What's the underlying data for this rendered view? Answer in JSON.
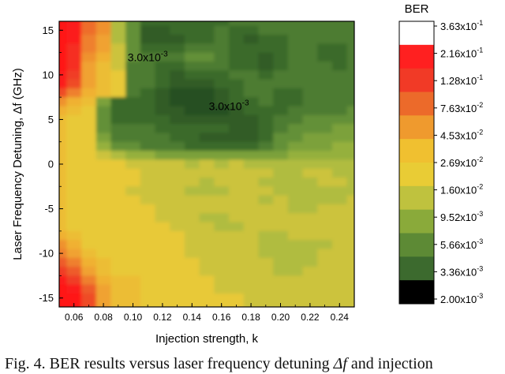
{
  "chart_data": {
    "type": "heatmap",
    "title": "",
    "xlabel": "Injection strength, k",
    "ylabel": "Laser Frequency Detuning, Δf (GHz)",
    "xlim": [
      0.05,
      0.25
    ],
    "ylim": [
      -16,
      16
    ],
    "x_ticks": [
      0.06,
      0.08,
      0.1,
      0.12,
      0.14,
      0.16,
      0.18,
      0.2,
      0.22,
      0.24
    ],
    "x_tick_labels": [
      "0.06",
      "0.08",
      "0.10",
      "0.12",
      "0.14",
      "0.16",
      "0.18",
      "0.20",
      "0.22",
      "0.24"
    ],
    "y_ticks": [
      -15,
      -10,
      -5,
      0,
      5,
      10,
      15
    ],
    "y_tick_labels": [
      "-15",
      "-10",
      "-5",
      "0",
      "5",
      "10",
      "15"
    ],
    "x": [
      0.05,
      0.06,
      0.07,
      0.08,
      0.09,
      0.1,
      0.11,
      0.12,
      0.13,
      0.14,
      0.15,
      0.16,
      0.17,
      0.18,
      0.19,
      0.2,
      0.21,
      0.22,
      0.23,
      0.24,
      0.25
    ],
    "y": [
      16,
      15,
      14,
      13,
      12,
      11,
      10,
      9,
      8,
      7,
      6,
      5,
      4,
      3,
      2,
      1,
      0,
      -1,
      -2,
      -3,
      -4,
      -5,
      -6,
      -7,
      -8,
      -9,
      -10,
      -11,
      -12,
      -13,
      -14,
      -15,
      -16
    ],
    "z_log10_ber": [
      [
        -0.6,
        -0.7,
        -1.2,
        -1.4,
        -2.0,
        -2.3,
        -2.5,
        -2.5,
        -2.5,
        -2.5,
        -2.5,
        -2.5,
        -2.4,
        -2.4,
        -2.4,
        -2.4,
        -2.4,
        -2.4,
        -2.4,
        -2.4,
        -2.4
      ],
      [
        -0.6,
        -0.7,
        -1.2,
        -1.4,
        -2.0,
        -2.3,
        -2.6,
        -2.6,
        -2.5,
        -2.5,
        -2.5,
        -2.4,
        -2.5,
        -2.5,
        -2.4,
        -2.4,
        -2.4,
        -2.4,
        -2.4,
        -2.4,
        -2.4
      ],
      [
        -0.6,
        -0.7,
        -1.3,
        -1.5,
        -2.0,
        -2.3,
        -2.6,
        -2.6,
        -2.6,
        -2.5,
        -2.5,
        -2.4,
        -2.5,
        -2.6,
        -2.5,
        -2.5,
        -2.4,
        -2.4,
        -2.4,
        -2.4,
        -2.4
      ],
      [
        -0.6,
        -0.8,
        -1.3,
        -1.5,
        -1.9,
        -2.3,
        -2.5,
        -2.5,
        -2.5,
        -2.4,
        -2.4,
        -2.4,
        -2.5,
        -2.5,
        -2.5,
        -2.5,
        -2.4,
        -2.4,
        -2.5,
        -2.5,
        -2.4
      ],
      [
        -0.6,
        -0.8,
        -1.4,
        -1.6,
        -1.9,
        -2.3,
        -2.4,
        -2.4,
        -2.4,
        -2.3,
        -2.3,
        -2.4,
        -2.5,
        -2.5,
        -2.6,
        -2.5,
        -2.4,
        -2.4,
        -2.5,
        -2.5,
        -2.4
      ],
      [
        -0.6,
        -0.8,
        -1.5,
        -1.7,
        -1.9,
        -2.4,
        -2.4,
        -2.5,
        -2.5,
        -2.4,
        -2.4,
        -2.4,
        -2.5,
        -2.5,
        -2.6,
        -2.5,
        -2.4,
        -2.4,
        -2.4,
        -2.5,
        -2.4
      ],
      [
        -0.7,
        -0.9,
        -1.5,
        -1.7,
        -1.8,
        -2.4,
        -2.4,
        -2.5,
        -2.6,
        -2.5,
        -2.5,
        -2.5,
        -2.4,
        -2.4,
        -2.5,
        -2.4,
        -2.4,
        -2.4,
        -2.4,
        -2.4,
        -2.4
      ],
      [
        -0.7,
        -1.0,
        -1.5,
        -1.7,
        -1.8,
        -2.4,
        -2.4,
        -2.5,
        -2.6,
        -2.6,
        -2.6,
        -2.5,
        -2.5,
        -2.4,
        -2.4,
        -2.4,
        -2.4,
        -2.4,
        -2.4,
        -2.4,
        -2.4
      ],
      [
        -1.0,
        -1.3,
        -1.6,
        -1.7,
        -1.8,
        -2.4,
        -2.5,
        -2.6,
        -2.7,
        -2.7,
        -2.7,
        -2.6,
        -2.5,
        -2.4,
        -2.4,
        -2.5,
        -2.5,
        -2.4,
        -2.4,
        -2.4,
        -2.4
      ],
      [
        -1.4,
        -1.6,
        -1.7,
        -2.2,
        -2.5,
        -2.5,
        -2.5,
        -2.6,
        -2.7,
        -2.8,
        -2.8,
        -2.6,
        -2.5,
        -2.5,
        -2.4,
        -2.5,
        -2.5,
        -2.4,
        -2.4,
        -2.4,
        -2.4
      ],
      [
        -1.6,
        -1.7,
        -1.8,
        -2.3,
        -2.5,
        -2.5,
        -2.5,
        -2.6,
        -2.6,
        -2.7,
        -2.7,
        -2.7,
        -2.6,
        -2.5,
        -2.5,
        -2.5,
        -2.4,
        -2.4,
        -2.4,
        -2.4,
        -2.3
      ],
      [
        -1.7,
        -1.8,
        -1.8,
        -2.3,
        -2.5,
        -2.5,
        -2.5,
        -2.5,
        -2.6,
        -2.6,
        -2.6,
        -2.6,
        -2.6,
        -2.6,
        -2.5,
        -2.4,
        -2.4,
        -2.3,
        -2.3,
        -2.3,
        -2.3
      ],
      [
        -1.7,
        -1.8,
        -1.8,
        -2.3,
        -2.4,
        -2.4,
        -2.4,
        -2.5,
        -2.5,
        -2.5,
        -2.5,
        -2.5,
        -2.6,
        -2.6,
        -2.5,
        -2.4,
        -2.3,
        -2.3,
        -2.3,
        -2.2,
        -2.2
      ],
      [
        -1.7,
        -1.8,
        -1.8,
        -2.2,
        -2.4,
        -2.4,
        -2.4,
        -2.4,
        -2.5,
        -2.5,
        -2.6,
        -2.6,
        -2.6,
        -2.6,
        -2.5,
        -2.3,
        -2.3,
        -2.2,
        -2.2,
        -2.2,
        -2.2
      ],
      [
        -1.7,
        -1.8,
        -1.8,
        -2.1,
        -2.3,
        -2.3,
        -2.4,
        -2.4,
        -2.4,
        -2.5,
        -2.5,
        -2.5,
        -2.5,
        -2.5,
        -2.4,
        -2.3,
        -2.2,
        -2.2,
        -2.2,
        -2.1,
        -2.1
      ],
      [
        -1.7,
        -1.8,
        -1.8,
        -1.9,
        -2.0,
        -2.1,
        -2.1,
        -2.2,
        -2.2,
        -2.2,
        -2.2,
        -2.2,
        -2.2,
        -2.2,
        -2.2,
        -2.2,
        -2.1,
        -2.1,
        -2.1,
        -2.1,
        -2.1
      ],
      [
        -1.7,
        -1.8,
        -1.8,
        -1.8,
        -1.8,
        -1.9,
        -1.9,
        -1.9,
        -1.9,
        -2.0,
        -1.9,
        -2.0,
        -1.9,
        -2.0,
        -2.0,
        -2.0,
        -2.0,
        -2.0,
        -2.0,
        -2.0,
        -2.0
      ],
      [
        -1.7,
        -1.8,
        -1.8,
        -1.8,
        -1.8,
        -1.8,
        -1.9,
        -1.9,
        -1.9,
        -1.9,
        -1.9,
        -1.9,
        -1.9,
        -1.9,
        -1.9,
        -2.0,
        -2.0,
        -1.9,
        -1.9,
        -2.0,
        -2.0
      ],
      [
        -1.7,
        -1.8,
        -1.8,
        -1.8,
        -1.8,
        -1.8,
        -1.9,
        -1.9,
        -1.9,
        -1.9,
        -2.0,
        -1.9,
        -1.9,
        -1.9,
        -2.0,
        -2.0,
        -2.0,
        -2.0,
        -1.9,
        -1.9,
        -2.0
      ],
      [
        -1.7,
        -1.8,
        -1.8,
        -1.8,
        -1.8,
        -1.9,
        -1.9,
        -1.9,
        -1.9,
        -2.0,
        -2.0,
        -2.0,
        -1.9,
        -1.9,
        -1.9,
        -2.0,
        -2.0,
        -2.0,
        -2.0,
        -2.0,
        -2.0
      ],
      [
        -1.7,
        -1.8,
        -1.8,
        -1.8,
        -1.8,
        -1.8,
        -1.9,
        -1.9,
        -1.9,
        -1.9,
        -1.9,
        -1.9,
        -1.9,
        -1.9,
        -2.0,
        -1.9,
        -2.0,
        -2.0,
        -2.0,
        -2.0,
        -1.9
      ],
      [
        -1.7,
        -1.8,
        -1.8,
        -1.8,
        -1.8,
        -1.8,
        -1.8,
        -1.9,
        -1.9,
        -1.9,
        -1.9,
        -1.9,
        -1.9,
        -1.9,
        -1.9,
        -1.9,
        -2.0,
        -2.0,
        -1.9,
        -1.9,
        -1.9
      ],
      [
        -1.7,
        -1.8,
        -1.8,
        -1.8,
        -1.8,
        -1.8,
        -1.8,
        -1.9,
        -1.9,
        -1.9,
        -2.0,
        -2.0,
        -1.9,
        -1.9,
        -1.9,
        -1.9,
        -1.9,
        -1.9,
        -1.9,
        -1.9,
        -1.9
      ],
      [
        -1.7,
        -1.8,
        -1.8,
        -1.8,
        -1.8,
        -1.8,
        -1.8,
        -1.8,
        -1.9,
        -1.9,
        -1.9,
        -2.0,
        -2.0,
        -1.9,
        -1.9,
        -1.9,
        -1.9,
        -1.9,
        -1.9,
        -1.9,
        -1.9
      ],
      [
        -1.6,
        -1.7,
        -1.8,
        -1.8,
        -1.8,
        -1.8,
        -1.8,
        -1.8,
        -1.8,
        -1.9,
        -1.9,
        -1.9,
        -1.9,
        -1.9,
        -2.0,
        -2.0,
        -1.9,
        -1.9,
        -1.9,
        -1.9,
        -1.9
      ],
      [
        -1.4,
        -1.6,
        -1.8,
        -1.8,
        -1.8,
        -1.8,
        -1.8,
        -1.8,
        -1.8,
        -1.9,
        -1.9,
        -1.9,
        -1.9,
        -1.9,
        -2.0,
        -2.0,
        -2.0,
        -2.0,
        -2.0,
        -1.9,
        -1.9
      ],
      [
        -1.3,
        -1.5,
        -1.7,
        -1.8,
        -1.8,
        -1.8,
        -1.8,
        -1.8,
        -1.8,
        -1.9,
        -1.9,
        -1.9,
        -1.9,
        -1.9,
        -2.0,
        -2.0,
        -2.0,
        -2.0,
        -1.9,
        -1.9,
        -1.9
      ],
      [
        -1.1,
        -1.3,
        -1.6,
        -1.7,
        -1.8,
        -1.8,
        -1.8,
        -1.8,
        -1.8,
        -1.8,
        -1.9,
        -1.9,
        -1.9,
        -1.9,
        -1.9,
        -2.0,
        -2.0,
        -2.0,
        -1.9,
        -1.9,
        -1.9
      ],
      [
        -0.9,
        -1.1,
        -1.5,
        -1.7,
        -1.8,
        -1.8,
        -1.8,
        -1.8,
        -1.8,
        -1.8,
        -1.9,
        -1.9,
        -1.9,
        -1.9,
        -1.9,
        -2.0,
        -2.0,
        -1.9,
        -1.9,
        -1.9,
        -1.9
      ],
      [
        -0.7,
        -0.9,
        -1.3,
        -1.6,
        -1.7,
        -1.7,
        -1.8,
        -1.8,
        -1.8,
        -1.8,
        -1.8,
        -1.9,
        -1.9,
        -1.9,
        -1.9,
        -1.9,
        -1.9,
        -1.9,
        -1.9,
        -1.9,
        -1.9
      ],
      [
        -0.6,
        -0.7,
        -1.1,
        -1.5,
        -1.7,
        -1.7,
        -1.8,
        -1.8,
        -1.8,
        -1.8,
        -1.8,
        -1.9,
        -1.9,
        -1.9,
        -1.9,
        -1.9,
        -1.9,
        -1.9,
        -1.9,
        -1.9,
        -1.9
      ],
      [
        -0.6,
        -0.6,
        -1.0,
        -1.5,
        -1.7,
        -1.7,
        -1.8,
        -1.8,
        -1.8,
        -1.8,
        -1.8,
        -1.8,
        -1.8,
        -1.9,
        -1.9,
        -1.9,
        -1.9,
        -1.9,
        -1.9,
        -1.9,
        -1.9
      ],
      [
        -0.6,
        -0.6,
        -1.0,
        -1.5,
        -1.7,
        -1.7,
        -1.8,
        -1.8,
        -1.8,
        -1.8,
        -1.8,
        -1.8,
        -1.8,
        -1.9,
        -1.9,
        -1.9,
        -1.9,
        -1.9,
        -1.9,
        -1.9,
        -1.9
      ]
    ],
    "annotations": [
      {
        "label": "3.0x10",
        "exp": "-3",
        "x": 0.11,
        "y": 12
      },
      {
        "label": "3.0x10",
        "exp": "-3",
        "x": 0.165,
        "y": 6.5
      }
    ],
    "colorbar": {
      "title": "BER",
      "labels": [
        {
          "m": "3.63x10",
          "e": "-1"
        },
        {
          "m": "2.16x10",
          "e": "-1"
        },
        {
          "m": "1.28x10",
          "e": "-1"
        },
        {
          "m": "7.63x10",
          "e": "-2"
        },
        {
          "m": "4.53x10",
          "e": "-2"
        },
        {
          "m": "2.69x10",
          "e": "-2"
        },
        {
          "m": "1.60x10",
          "e": "-2"
        },
        {
          "m": "9.52x10",
          "e": "-3"
        },
        {
          "m": "5.66x10",
          "e": "-3"
        },
        {
          "m": "3.36x10",
          "e": "-3"
        },
        {
          "m": "2.00x10",
          "e": "-3"
        }
      ],
      "colors": [
        "#ffffff",
        "#ff2020",
        "#f13a26",
        "#ec6a2a",
        "#ef9a2e",
        "#f0c030",
        "#e9cc35",
        "#bfc23e",
        "#8aaa3a",
        "#5d8a35",
        "#3c6a2e",
        "#000000"
      ],
      "stops": [
        {
          "v": -2.699,
          "c": "#264f22"
        },
        {
          "v": -2.47,
          "c": "#3d6e2c"
        },
        {
          "v": -2.25,
          "c": "#6e9a3a"
        },
        {
          "v": -2.02,
          "c": "#aabb40"
        },
        {
          "v": -1.8,
          "c": "#e8c938"
        },
        {
          "v": -1.57,
          "c": "#f1ad32"
        },
        {
          "v": -1.35,
          "c": "#ef8a2e"
        },
        {
          "v": -1.12,
          "c": "#ee5e2b"
        },
        {
          "v": -0.89,
          "c": "#f03a26"
        },
        {
          "v": -0.66,
          "c": "#ff1818"
        },
        {
          "v": -0.44,
          "c": "#ff1010"
        }
      ]
    }
  },
  "caption": {
    "prefix": "Fig. 4. BER results versus laser frequency detuning ",
    "symbol": "Δf",
    "suffix": " and injection"
  }
}
